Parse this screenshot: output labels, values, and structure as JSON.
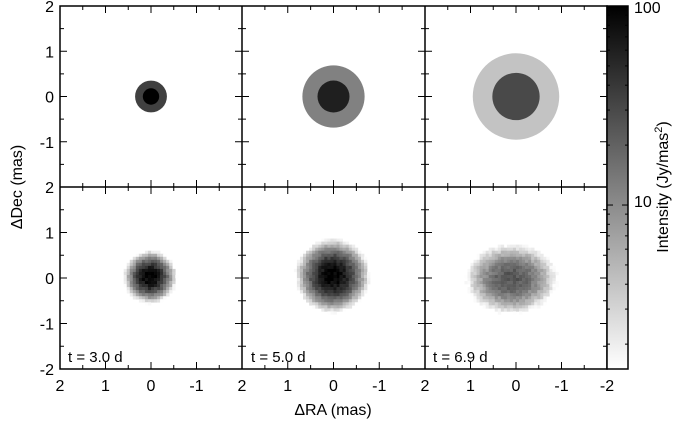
{
  "chart_data": {
    "type": "heatmap",
    "xlabel": "ΔRA (mas)",
    "ylabel": "ΔDec (mas)",
    "xlim": [
      2,
      -2
    ],
    "ylim": [
      -2,
      2
    ],
    "x_ticks": [
      "2",
      "1",
      "0",
      "-1",
      "-2"
    ],
    "x_ticks_panel": [
      "2",
      "1",
      "0",
      "-1"
    ],
    "y_ticks": [
      "2",
      "1",
      "0",
      "-1",
      "-2"
    ],
    "y_ticks_top": [
      "2",
      "1",
      "0",
      "-1"
    ],
    "colorbar": {
      "label": "Intensity (Jy/mas²)",
      "scale": "log",
      "range": [
        1.5,
        100
      ],
      "tick_labels": [
        "100",
        "10"
      ],
      "tick_values": [
        100,
        10
      ]
    },
    "panels_top": [
      {
        "center": [
          0,
          0
        ],
        "core_radius": 0.18,
        "core_intensity": 100,
        "shell_radius": 0.35,
        "shell_intensity": 35
      },
      {
        "center": [
          0,
          0
        ],
        "core_radius": 0.35,
        "core_intensity": 60,
        "shell_radius": 0.68,
        "shell_intensity": 12
      },
      {
        "center": [
          0,
          0
        ],
        "core_radius": 0.52,
        "core_intensity": 30,
        "shell_radius": 0.95,
        "shell_intensity": 4
      }
    ],
    "panels_bottom": [
      {
        "label": "t = 3.0 d",
        "center": [
          0.02,
          0.02
        ],
        "sigma": [
          0.2,
          0.2
        ],
        "peak": 100
      },
      {
        "label": "t = 5.0 d",
        "center": [
          0.02,
          0.05
        ],
        "sigma": [
          0.28,
          0.28
        ],
        "peak": 100
      },
      {
        "label": "t = 6.9 d",
        "center": [
          0.1,
          -0.02
        ],
        "sigma": [
          0.42,
          0.32
        ],
        "peak": 25
      }
    ]
  }
}
